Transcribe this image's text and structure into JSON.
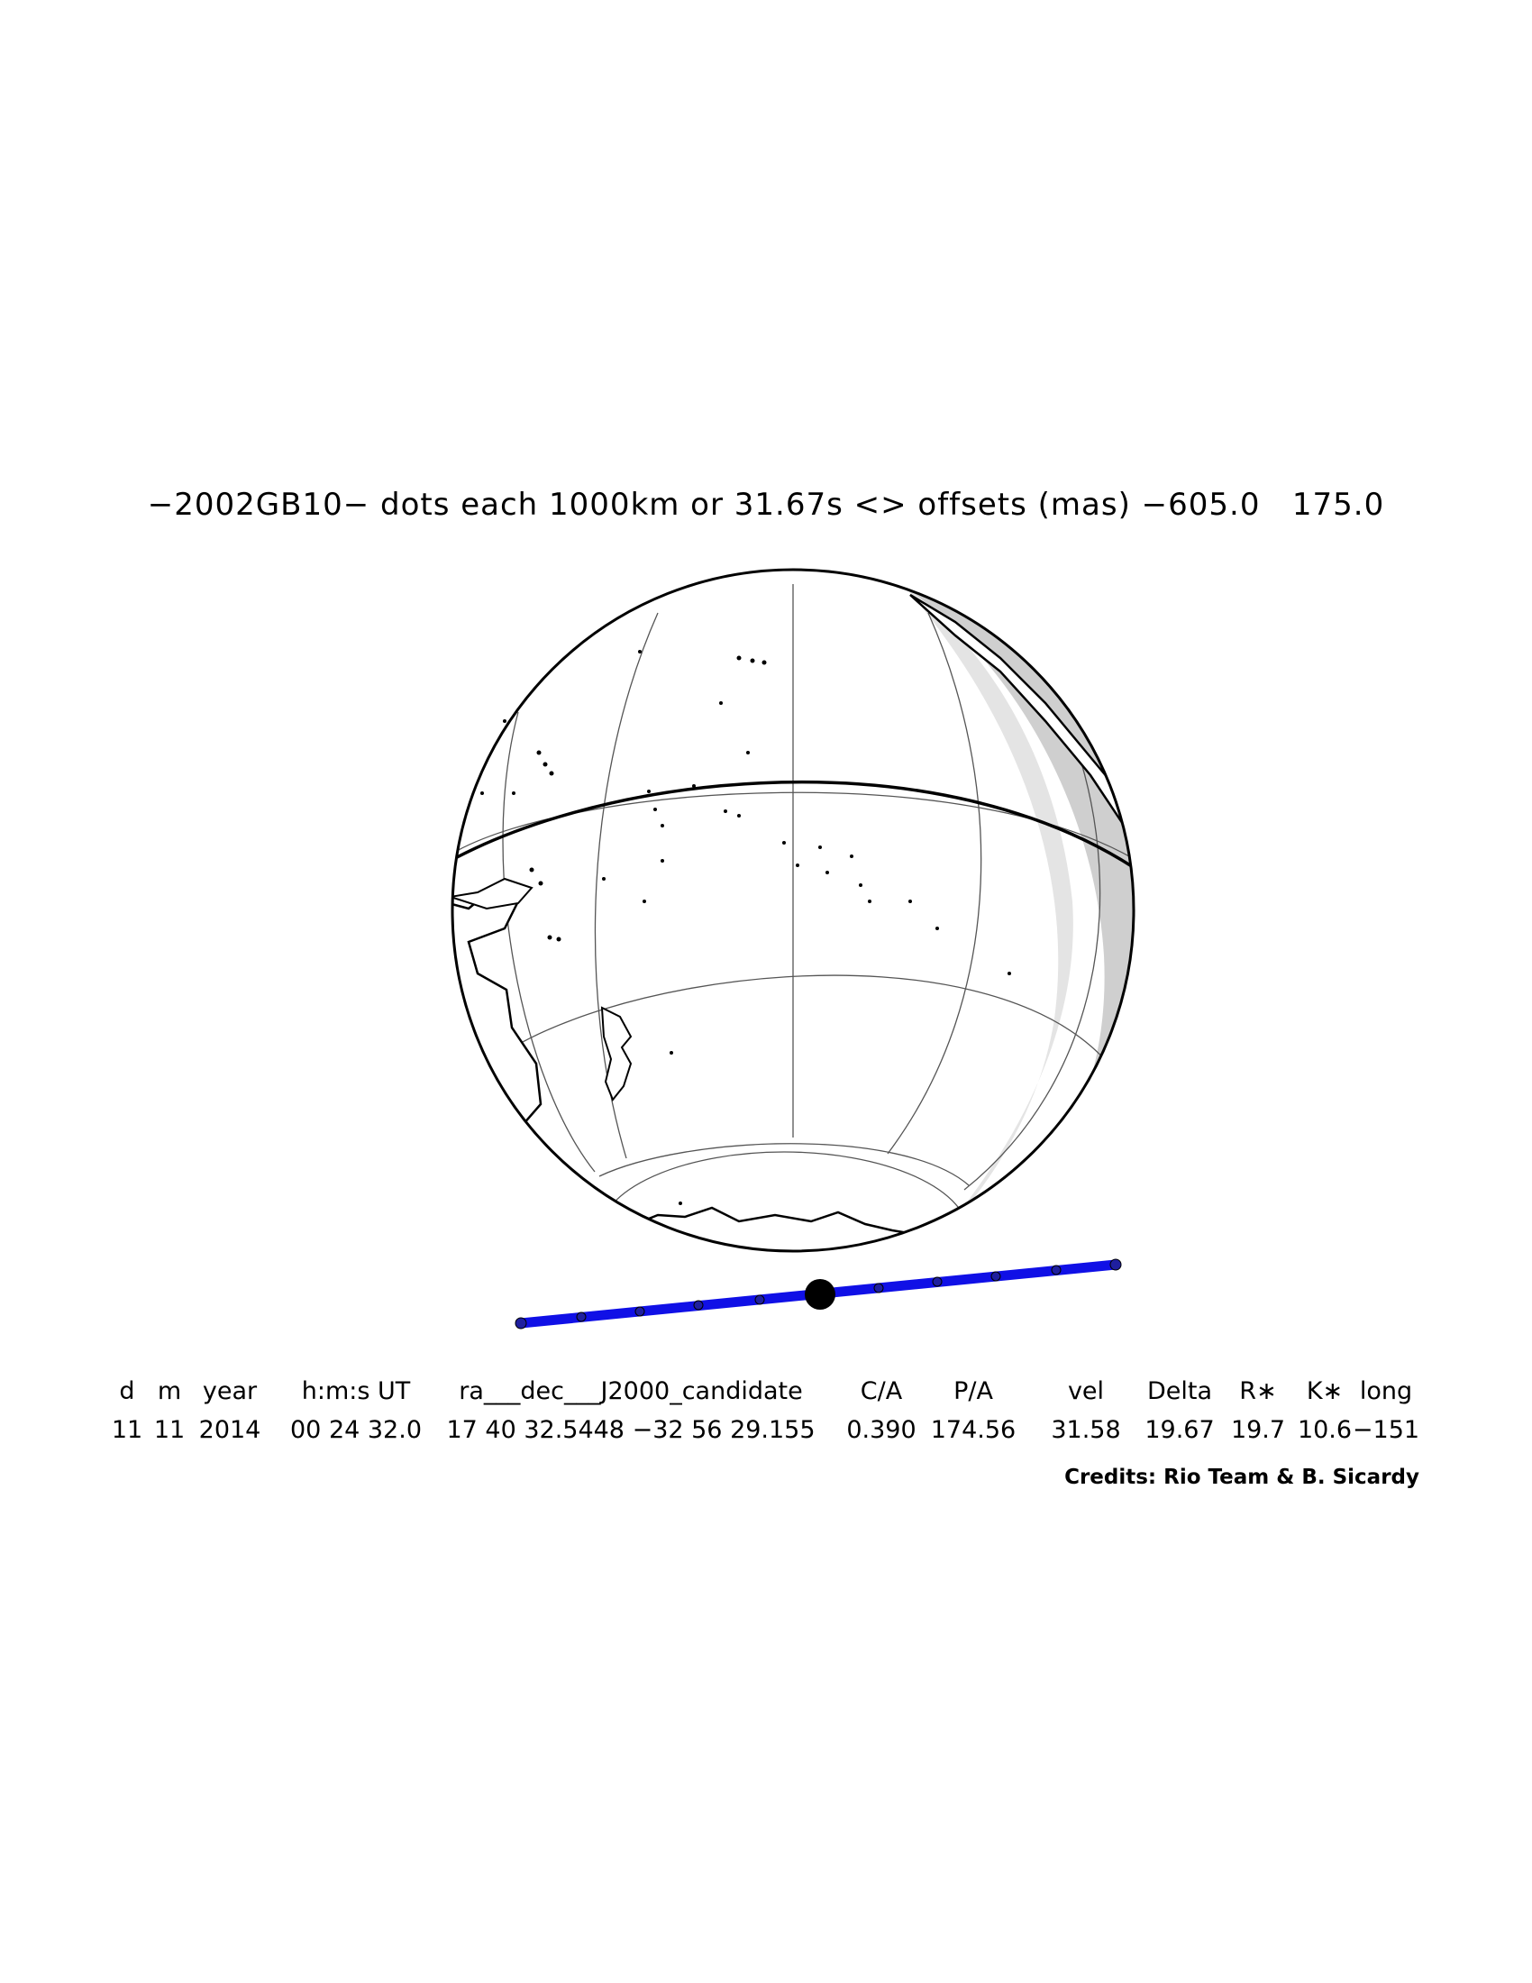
{
  "title": "−2002GB10− dots each 1000km or 31.67s <> offsets (mas) −605.0   175.0",
  "colors": {
    "track": "#1010e6",
    "night_shade": "#cfcfcf",
    "land_outline": "#000000",
    "grid": "#555555"
  },
  "table": {
    "headers": [
      "d",
      "m",
      "year",
      "h:m:s UT",
      "ra___dec___J2000_candidate",
      "C/A",
      "P/A",
      "vel",
      "Delta",
      "R∗",
      "K∗",
      "long"
    ],
    "values": [
      "11",
      "11",
      "2014",
      "00 24 32.0",
      "17 40 32.5448 −32 56 29.155",
      "0.390",
      "174.56",
      "31.58",
      "19.67",
      "19.7",
      "10.6",
      "−151"
    ]
  },
  "credits": "Credits: Rio Team & B. Sicardy"
}
